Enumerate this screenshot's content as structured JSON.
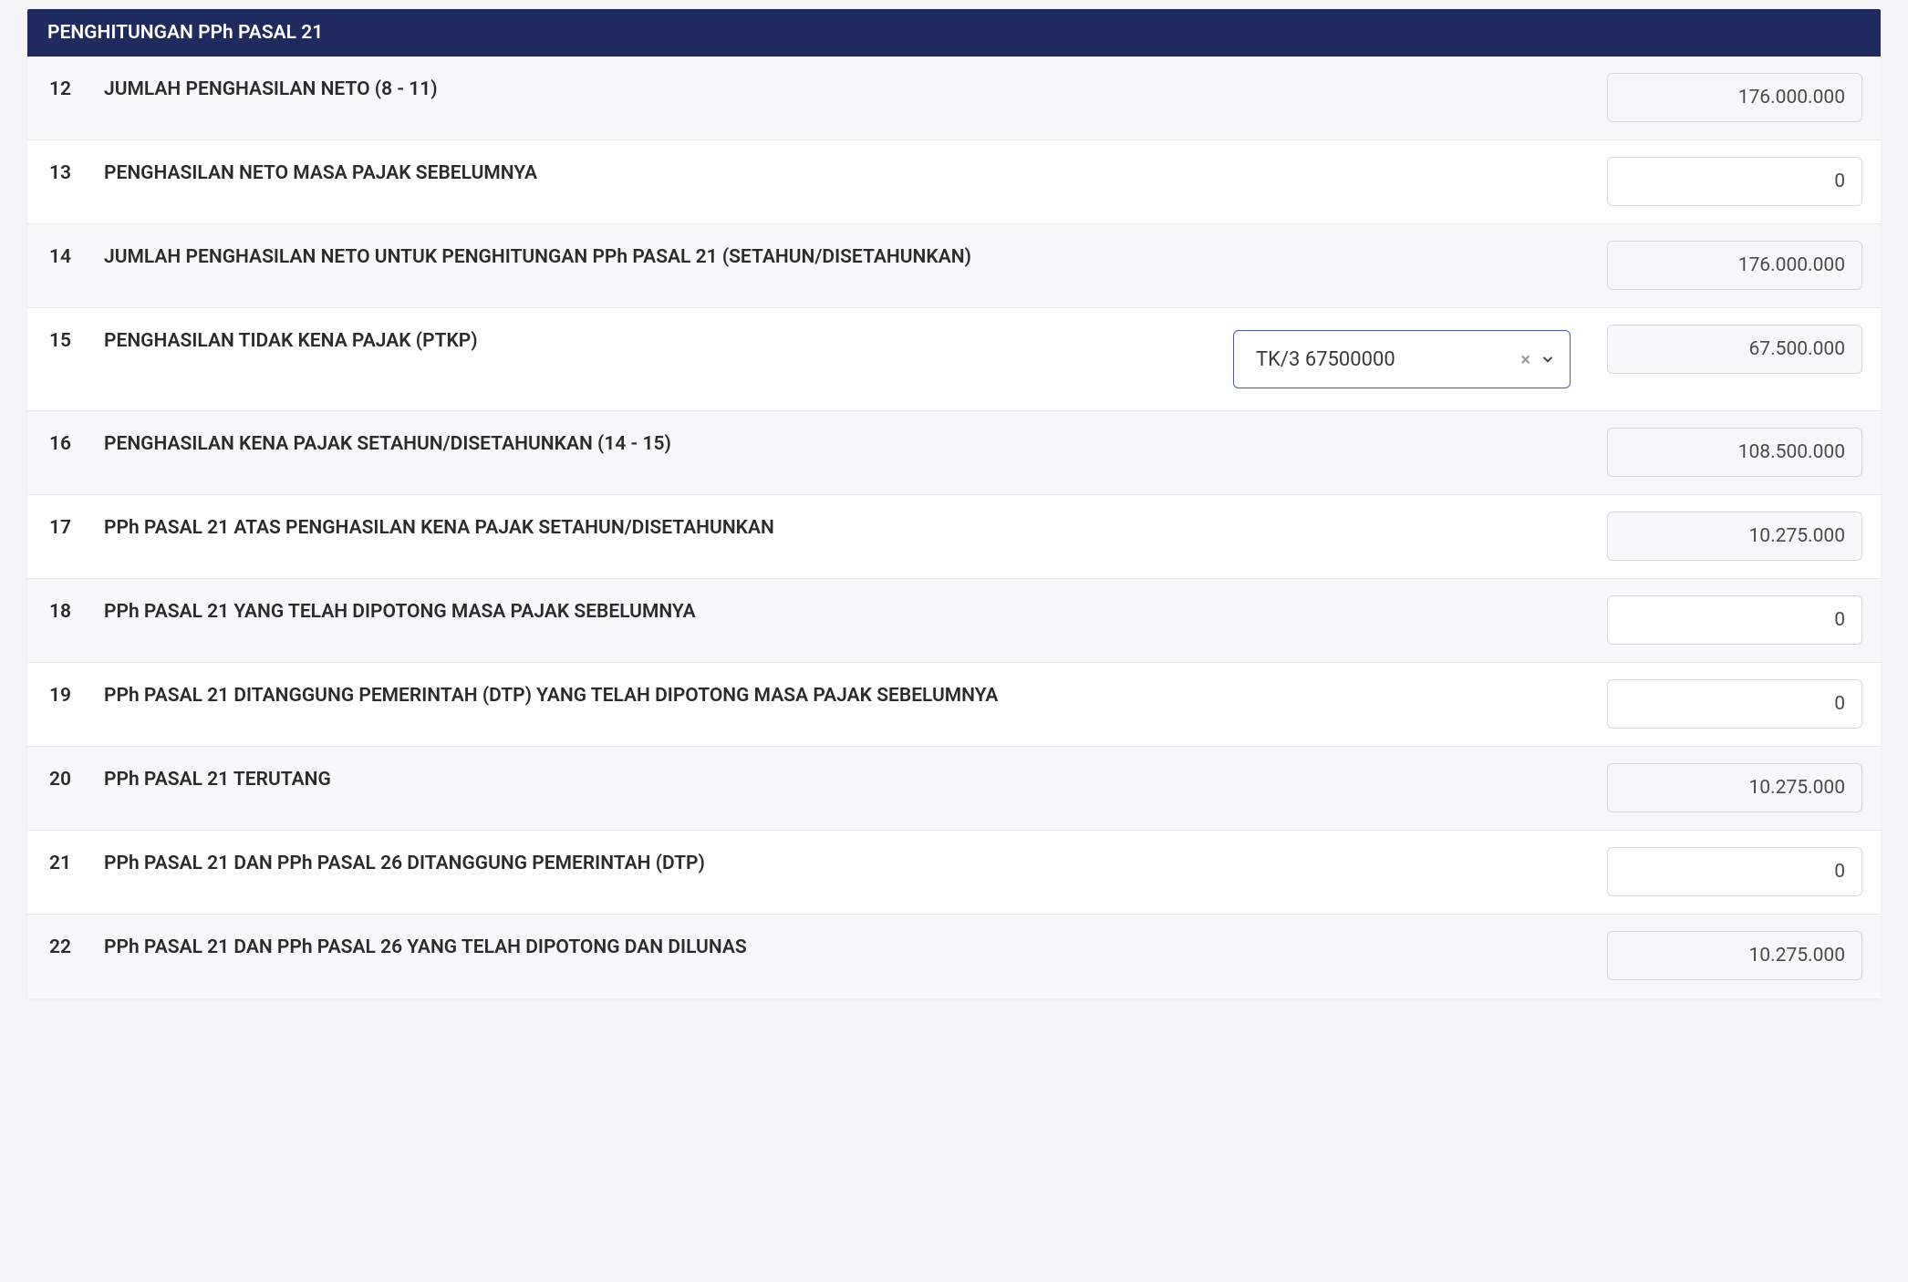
{
  "section_title": "PENGHITUNGAN PPh PASAL 21",
  "colors": {
    "header_bg": "#1f2a5e",
    "header_text": "#ffffff",
    "border": "#e8e9eb",
    "input_border": "#d8d9dd",
    "select_border": "#4a5ba8",
    "readonly_bg": "#f8f8fa",
    "text": "#2b2b2b"
  },
  "rows": [
    {
      "num": "12",
      "label": "JUMLAH PENGHASILAN NETO (8 - 11)",
      "value": "176.000.000",
      "readonly": true,
      "shade": "odd"
    },
    {
      "num": "13",
      "label": "PENGHASILAN NETO MASA PAJAK SEBELUMNYA",
      "value": "0",
      "readonly": false,
      "shade": "even"
    },
    {
      "num": "14",
      "label": "JUMLAH PENGHASILAN NETO UNTUK PENGHITUNGAN PPh PASAL 21 (SETAHUN/DISETAHUNKAN)",
      "value": "176.000.000",
      "readonly": true,
      "shade": "odd"
    },
    {
      "num": "15",
      "label": "PENGHASILAN TIDAK KENA PAJAK (PTKP)",
      "value": "67.500.000",
      "readonly": true,
      "shade": "even",
      "has_select": true,
      "select_value": "TK/3 67500000"
    },
    {
      "num": "16",
      "label": "PENGHASILAN KENA PAJAK SETAHUN/DISETAHUNKAN (14 - 15)",
      "value": "108.500.000",
      "readonly": true,
      "shade": "odd"
    },
    {
      "num": "17",
      "label": "PPh PASAL 21 ATAS PENGHASILAN KENA PAJAK SETAHUN/DISETAHUNKAN",
      "value": "10.275.000",
      "readonly": true,
      "shade": "even"
    },
    {
      "num": "18",
      "label": "PPh PASAL 21 YANG TELAH DIPOTONG MASA PAJAK SEBELUMNYA",
      "value": "0",
      "readonly": false,
      "shade": "odd"
    },
    {
      "num": "19",
      "label": "PPh PASAL 21 DITANGGUNG PEMERINTAH (DTP) YANG TELAH DIPOTONG MASA PAJAK SEBELUMNYA",
      "value": "0",
      "readonly": false,
      "shade": "even"
    },
    {
      "num": "20",
      "label": "PPh PASAL 21 TERUTANG",
      "value": "10.275.000",
      "readonly": true,
      "shade": "odd"
    },
    {
      "num": "21",
      "label": "PPh PASAL 21 DAN PPh PASAL 26 DITANGGUNG PEMERINTAH (DTP)",
      "value": "0",
      "readonly": false,
      "shade": "even"
    },
    {
      "num": "22",
      "label": "PPh PASAL 21 DAN PPh PASAL 26 YANG TELAH DIPOTONG DAN DILUNAS",
      "value": "10.275.000",
      "readonly": true,
      "shade": "odd"
    }
  ]
}
